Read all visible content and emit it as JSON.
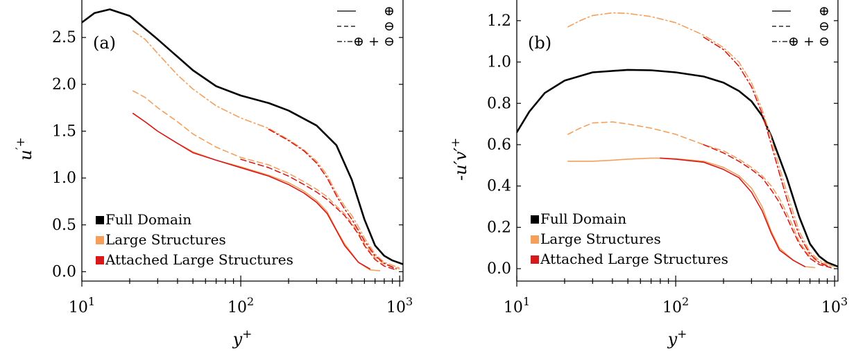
{
  "colors": {
    "full": "#000000",
    "large": "#f5a05a",
    "attached": "#d7191c"
  },
  "chart_data": [
    {
      "type": "line",
      "panel_label": "(a)",
      "xscale": "log",
      "xlim": [
        10,
        1050
      ],
      "ylim": [
        -0.1,
        2.9
      ],
      "xticks": [
        10,
        100,
        1000
      ],
      "xtick_labels": [
        "10",
        "10",
        "10"
      ],
      "xtick_exps": [
        "1",
        "2",
        "3"
      ],
      "yticks": [
        0.0,
        0.5,
        1.0,
        1.5,
        2.0,
        2.5
      ],
      "ytick_labels": [
        "0.0",
        "0.5",
        "1.0",
        "1.5",
        "2.0",
        "2.5"
      ],
      "xlabel": "y",
      "xlabel_sup": "+",
      "ylabel": "u",
      "ylabel_sup": "′+",
      "legend": [
        {
          "name": "Full Domain",
          "color": "full"
        },
        {
          "name": "Large Structures",
          "color": "large"
        },
        {
          "name": "Attached Large Structures",
          "color": "attached"
        }
      ],
      "style_legend": [
        {
          "style": "solid",
          "label": "⊕"
        },
        {
          "style": "dashed",
          "label": "⊖"
        },
        {
          "style": "dashdot",
          "label": "⊕ + ⊖"
        }
      ],
      "series": [
        {
          "color": "full",
          "style": "solid",
          "width": 2.6,
          "x": [
            10,
            12,
            15,
            20,
            30,
            50,
            70,
            100,
            150,
            200,
            300,
            400,
            500,
            600,
            700,
            800,
            900,
            1050
          ],
          "y": [
            2.66,
            2.76,
            2.8,
            2.73,
            2.48,
            2.15,
            1.98,
            1.88,
            1.8,
            1.72,
            1.56,
            1.35,
            0.98,
            0.56,
            0.28,
            0.17,
            0.12,
            0.08
          ]
        },
        {
          "color": "large",
          "style": "solid",
          "width": 1.6,
          "x": [
            21,
            25,
            30,
            40,
            50,
            70,
            100,
            150,
            200,
            250,
            300,
            350,
            400,
            450,
            550,
            650,
            750
          ],
          "y": [
            1.69,
            1.6,
            1.5,
            1.37,
            1.28,
            1.19,
            1.12,
            1.03,
            0.95,
            0.86,
            0.76,
            0.64,
            0.45,
            0.3,
            0.1,
            0.02,
            0.01
          ]
        },
        {
          "color": "attached",
          "style": "solid",
          "width": 1.6,
          "x": [
            21,
            25,
            30,
            40,
            50,
            70,
            100,
            150,
            200,
            250,
            300,
            350,
            400,
            450,
            550,
            650
          ],
          "y": [
            1.69,
            1.6,
            1.5,
            1.37,
            1.27,
            1.19,
            1.11,
            1.02,
            0.93,
            0.84,
            0.74,
            0.62,
            0.44,
            0.28,
            0.1,
            0.03
          ]
        },
        {
          "color": "large",
          "style": "dashed",
          "width": 1.6,
          "x": [
            21,
            25,
            30,
            40,
            50,
            70,
            100,
            150,
            200,
            250,
            300,
            350,
            400,
            450,
            500,
            550,
            600,
            700,
            800,
            1000
          ],
          "y": [
            1.93,
            1.86,
            1.75,
            1.6,
            1.47,
            1.33,
            1.22,
            1.14,
            1.05,
            0.96,
            0.88,
            0.8,
            0.7,
            0.62,
            0.52,
            0.42,
            0.3,
            0.15,
            0.08,
            0.03
          ]
        },
        {
          "color": "attached",
          "style": "dashed",
          "width": 1.6,
          "x": [
            100,
            150,
            200,
            250,
            300,
            350,
            400,
            450,
            500,
            550,
            600,
            700,
            800,
            950
          ],
          "y": [
            1.2,
            1.11,
            1.02,
            0.93,
            0.85,
            0.77,
            0.68,
            0.6,
            0.5,
            0.4,
            0.28,
            0.13,
            0.06,
            0.02
          ]
        },
        {
          "color": "large",
          "style": "dashdot",
          "width": 1.6,
          "x": [
            21,
            25,
            30,
            40,
            50,
            70,
            100,
            150,
            200,
            250,
            300,
            350,
            400,
            450,
            500,
            550,
            600,
            700,
            800,
            1000
          ],
          "y": [
            2.57,
            2.48,
            2.33,
            2.1,
            1.95,
            1.77,
            1.64,
            1.53,
            1.41,
            1.3,
            1.18,
            1.03,
            0.84,
            0.7,
            0.6,
            0.48,
            0.36,
            0.19,
            0.1,
            0.04
          ]
        },
        {
          "color": "attached",
          "style": "dashdot",
          "width": 1.6,
          "x": [
            150,
            200,
            250,
            300,
            350,
            400,
            450,
            500,
            550,
            600,
            700,
            800,
            950
          ],
          "y": [
            1.52,
            1.4,
            1.29,
            1.16,
            1.0,
            0.81,
            0.67,
            0.56,
            0.44,
            0.33,
            0.17,
            0.09,
            0.03
          ]
        }
      ]
    },
    {
      "type": "line",
      "panel_label": "(b)",
      "xscale": "log",
      "xlim": [
        10,
        1050
      ],
      "ylim": [
        -0.06,
        1.3
      ],
      "xticks": [
        10,
        100,
        1000
      ],
      "xtick_labels": [
        "10",
        "10",
        "10"
      ],
      "xtick_exps": [
        "1",
        "2",
        "3"
      ],
      "yticks": [
        0.0,
        0.2,
        0.4,
        0.6,
        0.8,
        1.0,
        1.2
      ],
      "ytick_labels": [
        "0.0",
        "0.2",
        "0.4",
        "0.6",
        "0.8",
        "1.0",
        "1.2"
      ],
      "xlabel": "y",
      "xlabel_sup": "+",
      "ylabel": "-u′v′",
      "ylabel_sup": "+",
      "legend": [
        {
          "name": "Full Domain",
          "color": "full"
        },
        {
          "name": "Large Structures",
          "color": "large"
        },
        {
          "name": "Attached Large Structures",
          "color": "attached"
        }
      ],
      "style_legend": [
        {
          "style": "solid",
          "label": "⊕"
        },
        {
          "style": "dashed",
          "label": "⊖"
        },
        {
          "style": "dashdot",
          "label": "⊕ + ⊖"
        }
      ],
      "series": [
        {
          "color": "full",
          "style": "solid",
          "width": 2.6,
          "x": [
            10,
            12,
            15,
            20,
            30,
            50,
            70,
            100,
            150,
            200,
            250,
            300,
            350,
            400,
            500,
            600,
            700,
            800,
            900,
            1050
          ],
          "y": [
            0.66,
            0.76,
            0.85,
            0.91,
            0.95,
            0.962,
            0.96,
            0.95,
            0.93,
            0.9,
            0.86,
            0.81,
            0.74,
            0.64,
            0.44,
            0.25,
            0.12,
            0.06,
            0.03,
            0.01
          ]
        },
        {
          "color": "large",
          "style": "solid",
          "width": 1.6,
          "x": [
            21,
            30,
            40,
            50,
            70,
            80,
            100,
            150,
            200,
            250,
            300,
            350,
            400,
            450,
            550,
            650,
            750
          ],
          "y": [
            0.52,
            0.52,
            0.525,
            0.53,
            0.535,
            0.535,
            0.532,
            0.52,
            0.49,
            0.45,
            0.39,
            0.3,
            0.18,
            0.1,
            0.04,
            0.01,
            0.005
          ]
        },
        {
          "color": "attached",
          "style": "solid",
          "width": 1.6,
          "x": [
            80,
            100,
            150,
            200,
            250,
            300,
            350,
            400,
            450,
            550,
            650
          ],
          "y": [
            0.535,
            0.53,
            0.515,
            0.48,
            0.44,
            0.37,
            0.28,
            0.17,
            0.09,
            0.04,
            0.01
          ]
        },
        {
          "color": "large",
          "style": "dashed",
          "width": 1.6,
          "x": [
            21,
            25,
            30,
            40,
            50,
            70,
            100,
            150,
            200,
            250,
            300,
            350,
            400,
            450,
            500,
            550,
            600,
            700,
            800,
            1000
          ],
          "y": [
            0.65,
            0.68,
            0.705,
            0.71,
            0.7,
            0.68,
            0.65,
            0.6,
            0.57,
            0.53,
            0.49,
            0.45,
            0.4,
            0.34,
            0.27,
            0.2,
            0.13,
            0.06,
            0.03,
            0.01
          ]
        },
        {
          "color": "attached",
          "style": "dashed",
          "width": 1.6,
          "x": [
            150,
            200,
            250,
            300,
            350,
            400,
            450,
            500,
            550,
            600,
            700,
            800,
            950
          ],
          "y": [
            0.6,
            0.56,
            0.52,
            0.48,
            0.44,
            0.38,
            0.32,
            0.25,
            0.18,
            0.12,
            0.05,
            0.02,
            0.005
          ]
        },
        {
          "color": "large",
          "style": "dashdot",
          "width": 1.6,
          "x": [
            21,
            25,
            30,
            40,
            50,
            70,
            100,
            150,
            200,
            250,
            300,
            350,
            400,
            450,
            500,
            550,
            600,
            700,
            800,
            1000
          ],
          "y": [
            1.17,
            1.2,
            1.225,
            1.238,
            1.235,
            1.22,
            1.19,
            1.13,
            1.07,
            1.0,
            0.9,
            0.77,
            0.63,
            0.49,
            0.37,
            0.27,
            0.18,
            0.08,
            0.04,
            0.01
          ]
        },
        {
          "color": "attached",
          "style": "dashdot",
          "width": 1.6,
          "x": [
            150,
            200,
            250,
            300,
            350,
            400,
            450,
            500,
            550,
            600,
            700,
            800,
            950
          ],
          "y": [
            1.12,
            1.06,
            0.98,
            0.88,
            0.75,
            0.6,
            0.46,
            0.34,
            0.24,
            0.16,
            0.07,
            0.03,
            0.005
          ]
        }
      ]
    }
  ]
}
